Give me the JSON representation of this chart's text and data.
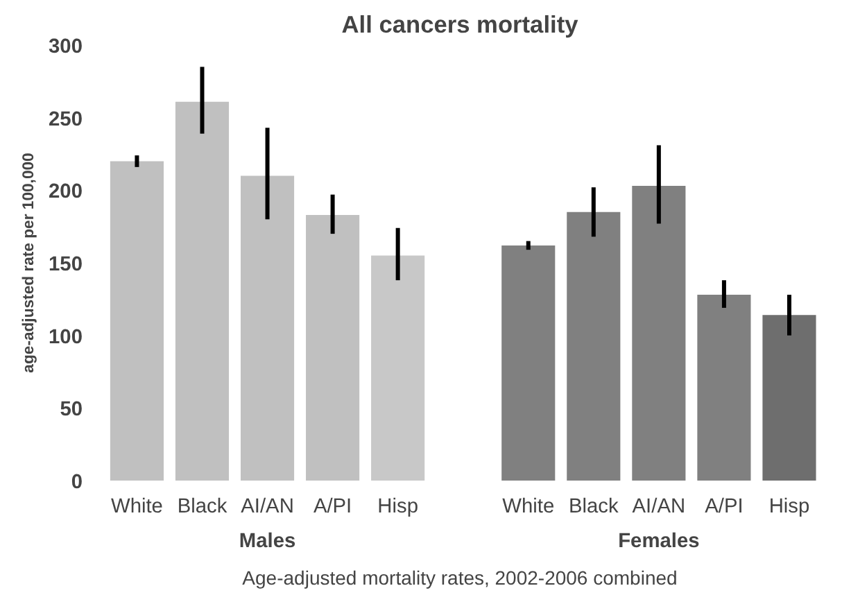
{
  "chart_data": {
    "type": "bar",
    "title": "All cancers mortality",
    "ylabel": "age-adjusted rate per 100,000",
    "categories": [
      "White",
      "Black",
      "AI/AN",
      "A/PI",
      "Hisp",
      null,
      "White",
      "Black",
      "AI/AN",
      "A/PI",
      "Hisp"
    ],
    "values": [
      220,
      261,
      210,
      183,
      155,
      null,
      162,
      185,
      203,
      128,
      114
    ],
    "errors": [
      [
        216,
        224
      ],
      [
        239,
        285
      ],
      [
        180,
        243
      ],
      [
        170,
        197
      ],
      [
        138,
        174
      ],
      null,
      [
        159,
        165
      ],
      [
        168,
        202
      ],
      [
        177,
        231
      ],
      [
        119,
        138
      ],
      [
        100,
        128
      ]
    ],
    "colors": [
      "#c0c0c0",
      "#c0c0c0",
      "#c0c0c0",
      "#c0c0c0",
      "#c8c8c8",
      "#ffffff",
      "#808080",
      "#808080",
      "#808080",
      "#808080",
      "#6e6e6e"
    ],
    "ylim": [
      0,
      300
    ],
    "yticks": [
      0,
      50,
      100,
      150,
      200,
      250,
      300
    ],
    "grid": false,
    "annotations": [
      "Males",
      "Females",
      "Age-adjusted mortality rates, 2002-2006 combined"
    ]
  }
}
